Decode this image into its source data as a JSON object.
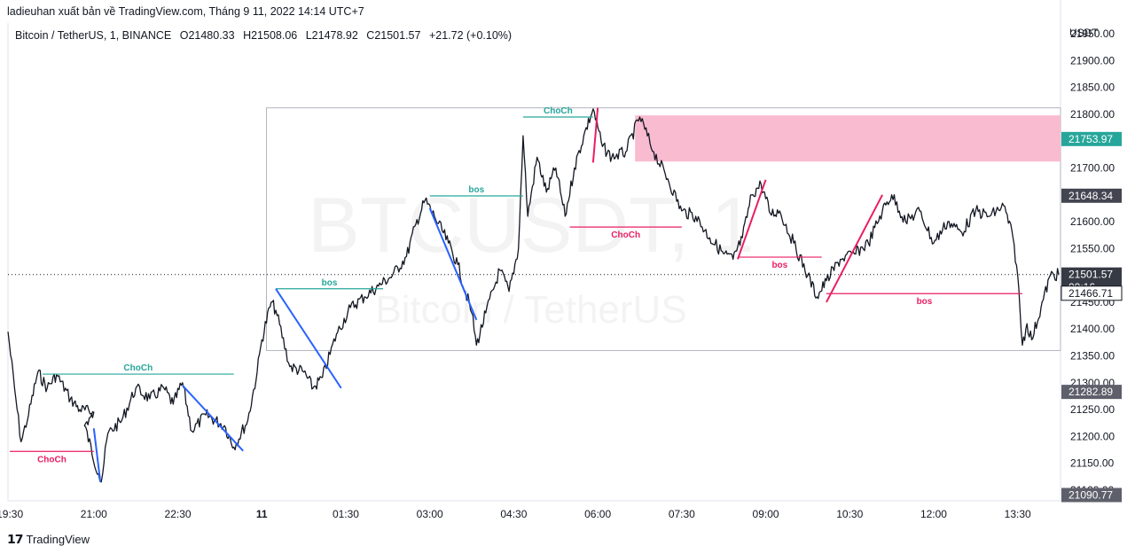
{
  "caption": "ladieuhan xuất bản về TradingView.com, Tháng 9 11, 2022 14:14 UTC+7",
  "legend": {
    "symbol": "Bitcoin / TetherUS, 1, BINANCE",
    "open": "O21480.33",
    "high": "H21508.06",
    "low": "L21478.92",
    "close": "C21501.57",
    "change": "+21.72 (+0.10%)"
  },
  "watermark": {
    "line1": "BTCUSDT, 1",
    "line2": "Bitcoin / TetherUS"
  },
  "brand": {
    "logo_icon": "tradingview-logo",
    "name": "TradingView"
  },
  "colors": {
    "bullish": "#26a69a",
    "bearish": "#e91e63",
    "impulse": "#2962ff",
    "zone": "#f8bbd0",
    "candle": "#131722"
  },
  "chart_data": {
    "type": "line",
    "title": "",
    "currency": "USDT",
    "ylim": [
      21080,
      21970
    ],
    "y_ticks": [
      21100,
      21150,
      21200,
      21250,
      21300,
      21350,
      21400,
      21450,
      21500,
      21550,
      21600,
      21650,
      21700,
      21750,
      21800,
      21850,
      21900,
      21950
    ],
    "x_ticks": [
      "19:30",
      "21:00",
      "22:30",
      "11",
      "01:30",
      "03:00",
      "04:30",
      "06:00",
      "07:30",
      "09:00",
      "10:30",
      "12:00",
      "13:30"
    ],
    "x_range": [
      "19:28",
      "14:14"
    ],
    "series": [
      {
        "values": [
          [
            "19:28",
            21395
          ],
          [
            "19:35",
            21290
          ],
          [
            "19:42",
            21190
          ],
          [
            "19:50",
            21240
          ],
          [
            "20:00",
            21320
          ],
          [
            "20:10",
            21290
          ],
          [
            "20:20",
            21315
          ],
          [
            "20:35",
            21270
          ],
          [
            "20:45",
            21250
          ],
          [
            "21:00",
            21245
          ],
          [
            "20:50",
            21220
          ],
          [
            "21:05",
            21130
          ],
          [
            "21:08",
            21115
          ],
          [
            "21:15",
            21205
          ],
          [
            "21:30",
            21230
          ],
          [
            "21:45",
            21290
          ],
          [
            "22:00",
            21270
          ],
          [
            "22:15",
            21290
          ],
          [
            "22:25",
            21260
          ],
          [
            "22:35",
            21300
          ],
          [
            "22:45",
            21210
          ],
          [
            "23:00",
            21240
          ],
          [
            "23:20",
            21220
          ],
          [
            "23:30",
            21180
          ],
          [
            "23:45",
            21230
          ],
          [
            "23:55",
            21320
          ],
          [
            "00:00",
            21380
          ],
          [
            "00:10",
            21450
          ],
          [
            "00:15",
            21435
          ],
          [
            "00:30",
            21330
          ],
          [
            "00:45",
            21320
          ],
          [
            "00:55",
            21290
          ],
          [
            "01:05",
            21310
          ],
          [
            "01:20",
            21390
          ],
          [
            "01:35",
            21440
          ],
          [
            "01:50",
            21460
          ],
          [
            "02:05",
            21480
          ],
          [
            "02:20",
            21500
          ],
          [
            "02:35",
            21535
          ],
          [
            "02:45",
            21595
          ],
          [
            "02:55",
            21640
          ],
          [
            "03:05",
            21610
          ],
          [
            "03:20",
            21560
          ],
          [
            "03:30",
            21520
          ],
          [
            "03:45",
            21430
          ],
          [
            "03:50",
            21370
          ],
          [
            "04:00",
            21430
          ],
          [
            "04:15",
            21510
          ],
          [
            "04:25",
            21470
          ],
          [
            "04:35",
            21550
          ],
          [
            "04:40",
            21760
          ],
          [
            "04:45",
            21610
          ],
          [
            "04:55",
            21720
          ],
          [
            "05:05",
            21655
          ],
          [
            "05:15",
            21700
          ],
          [
            "05:25",
            21610
          ],
          [
            "05:35",
            21700
          ],
          [
            "05:45",
            21760
          ],
          [
            "05:55",
            21810
          ],
          [
            "06:05",
            21740
          ],
          [
            "06:15",
            21720
          ],
          [
            "06:30",
            21730
          ],
          [
            "06:45",
            21795
          ],
          [
            "07:00",
            21730
          ],
          [
            "07:15",
            21680
          ],
          [
            "07:30",
            21620
          ],
          [
            "07:45",
            21610
          ],
          [
            "08:00",
            21570
          ],
          [
            "08:15",
            21540
          ],
          [
            "08:25",
            21530
          ],
          [
            "08:35",
            21570
          ],
          [
            "08:45",
            21650
          ],
          [
            "08:55",
            21670
          ],
          [
            "09:05",
            21615
          ],
          [
            "09:15",
            21620
          ],
          [
            "09:30",
            21560
          ],
          [
            "09:45",
            21500
          ],
          [
            "09:55",
            21460
          ],
          [
            "10:05",
            21490
          ],
          [
            "10:20",
            21530
          ],
          [
            "10:35",
            21540
          ],
          [
            "10:50",
            21560
          ],
          [
            "11:05",
            21620
          ],
          [
            "11:15",
            21650
          ],
          [
            "11:30",
            21600
          ],
          [
            "11:45",
            21620
          ],
          [
            "12:00",
            21560
          ],
          [
            "12:15",
            21600
          ],
          [
            "12:30",
            21580
          ],
          [
            "12:45",
            21620
          ],
          [
            "13:00",
            21610
          ],
          [
            "13:15",
            21630
          ],
          [
            "13:25",
            21570
          ],
          [
            "13:30",
            21500
          ],
          [
            "13:35",
            21370
          ],
          [
            "13:40",
            21410
          ],
          [
            "13:45",
            21380
          ],
          [
            "13:55",
            21440
          ],
          [
            "14:05",
            21500
          ],
          [
            "14:14",
            21501.57
          ]
        ]
      }
    ],
    "annotations": {
      "structure_lines": [
        {
          "label": "ChoCh",
          "color": "#26a69a",
          "y": 21316,
          "x1": "20:05",
          "x2": "23:30",
          "label_side": "above"
        },
        {
          "label": "ChoCh",
          "color": "#e91e63",
          "y": 21172,
          "x1": "19:30",
          "x2": "21:00",
          "label_side": "below"
        },
        {
          "label": "bos",
          "color": "#26a69a",
          "y": 21475,
          "x1": "00:15",
          "x2": "02:10",
          "label_side": "above"
        },
        {
          "label": "bos",
          "color": "#26a69a",
          "y": 21648,
          "x1": "03:00",
          "x2": "04:40",
          "label_side": "above"
        },
        {
          "label": "ChoCh",
          "color": "#26a69a",
          "y": 21795,
          "x1": "04:40",
          "x2": "05:55",
          "label_side": "above"
        },
        {
          "label": "ChoCh",
          "color": "#e91e63",
          "y": 21590,
          "x1": "05:30",
          "x2": "07:30",
          "label_side": "below"
        },
        {
          "label": "bos",
          "color": "#e91e63",
          "y": 21534,
          "x1": "08:30",
          "x2": "10:00",
          "label_side": "below"
        },
        {
          "label": "bos",
          "color": "#e91e63",
          "y": 21466,
          "x1": "10:05",
          "x2": "13:35",
          "label_side": "below"
        }
      ],
      "impulse_legs": [
        {
          "color": "#2962ff",
          "from": [
            "21:00",
            21215
          ],
          "to": [
            "21:07",
            21115
          ]
        },
        {
          "color": "#2962ff",
          "from": [
            "22:35",
            21295
          ],
          "to": [
            "23:40",
            21173
          ]
        },
        {
          "color": "#2962ff",
          "from": [
            "00:15",
            21475
          ],
          "to": [
            "01:25",
            21290
          ]
        },
        {
          "color": "#2962ff",
          "from": [
            "03:00",
            21625
          ],
          "to": [
            "03:50",
            21417
          ]
        },
        {
          "color": "#e91e63",
          "from": [
            "05:55",
            21710
          ],
          "to": [
            "06:00",
            21812
          ]
        },
        {
          "color": "#e91e63",
          "from": [
            "08:30",
            21530
          ],
          "to": [
            "09:00",
            21678
          ]
        },
        {
          "color": "#e91e63",
          "from": [
            "10:05",
            21450
          ],
          "to": [
            "11:05",
            21650
          ]
        }
      ],
      "supply_zone": {
        "y_low": 21712,
        "y_high": 21798,
        "x_start": "06:40"
      },
      "range_box": {
        "x_start": "00:05",
        "y_high": 21812,
        "y_low": 21360
      },
      "current_price_line": 21501.57
    },
    "price_labels": [
      {
        "value": "21753.97",
        "bg": "#26a69a",
        "fg": "#ffffff",
        "y": 21753.97
      },
      {
        "value": "21648.34",
        "bg": "#434651",
        "fg": "#ffffff",
        "y": 21648.34
      },
      {
        "value": "21501.57",
        "bg": "#363a45",
        "fg": "#ffffff",
        "y": 21501.57
      },
      {
        "value": "00:16",
        "bg": "#363a45",
        "fg": "#ffffff",
        "y": 21478
      },
      {
        "value": "21466.71",
        "bg": "#ffffff",
        "fg": "#131722",
        "y": 21466.71,
        "outlined": true
      },
      {
        "value": "21282.89",
        "bg": "#5d606b",
        "fg": "#ffffff",
        "y": 21282.89
      },
      {
        "value": "21090.77",
        "bg": "#5d606b",
        "fg": "#ffffff",
        "y": 21090.77
      }
    ]
  }
}
